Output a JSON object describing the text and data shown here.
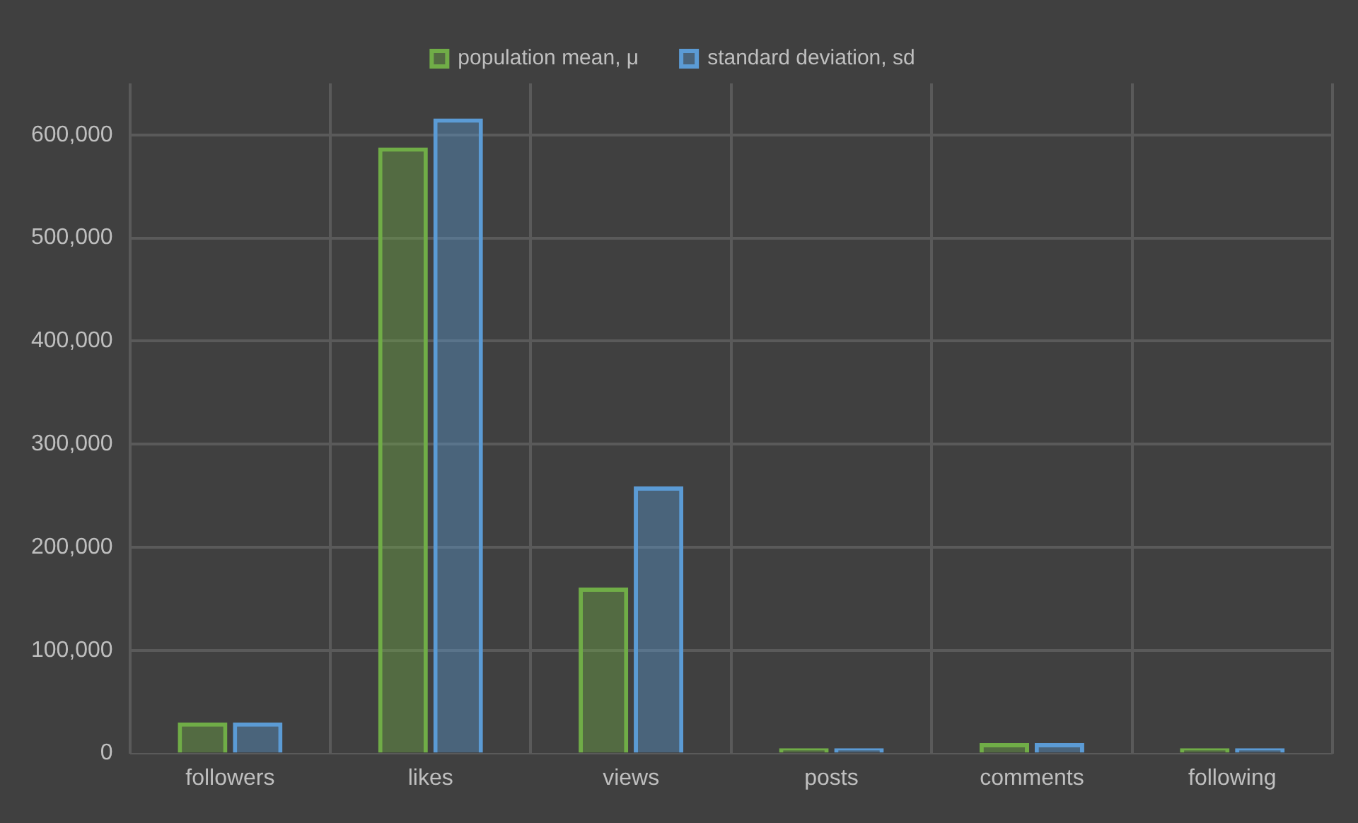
{
  "chart_data": {
    "type": "bar",
    "categories": [
      "followers",
      "likes",
      "views",
      "posts",
      "comments",
      "following"
    ],
    "series": [
      {
        "name": "population mean, μ",
        "color": "#70ad47",
        "values": [
          30000,
          588000,
          161000,
          5000,
          10000,
          5000
        ]
      },
      {
        "name": "standard deviation, sd",
        "color": "#5b9bd5",
        "values": [
          30000,
          616000,
          259000,
          5000,
          10000,
          5000
        ]
      }
    ],
    "ylim": [
      0,
      650000
    ],
    "yticks": [
      {
        "value": 0,
        "label": "0"
      },
      {
        "value": 100000,
        "label": "100,000"
      },
      {
        "value": 200000,
        "label": "200,000"
      },
      {
        "value": 300000,
        "label": "300,000"
      },
      {
        "value": 400000,
        "label": "400,000"
      },
      {
        "value": 500000,
        "label": "500,000"
      },
      {
        "value": 600000,
        "label": "600,000"
      }
    ],
    "grid": true,
    "legend": "top"
  }
}
